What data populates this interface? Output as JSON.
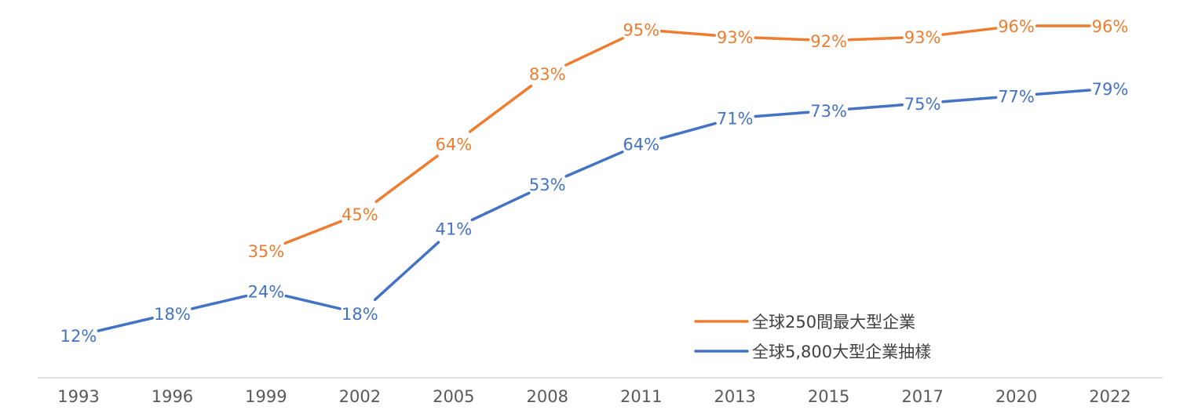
{
  "chart_data": {
    "type": "line",
    "title": "",
    "xlabel": "",
    "ylabel": "",
    "categories": [
      "1993",
      "1996",
      "1999",
      "2002",
      "2005",
      "2008",
      "2011",
      "2013",
      "2015",
      "2017",
      "2020",
      "2022"
    ],
    "ylim": [
      0,
      100
    ],
    "grid": false,
    "legend_position": "bottom-right",
    "series": [
      {
        "name": "全球250間最大型企業",
        "color": "#ED7D31",
        "values": [
          null,
          null,
          35,
          45,
          64,
          83,
          95,
          93,
          92,
          93,
          96,
          96
        ],
        "labels": [
          "",
          "",
          "35%",
          "45%",
          "64%",
          "83%",
          "95%",
          "93%",
          "92%",
          "93%",
          "96%",
          "96%"
        ]
      },
      {
        "name": "全球5,800大型企業抽樣",
        "color": "#4472C4",
        "values": [
          12,
          18,
          24,
          18,
          41,
          53,
          64,
          71,
          73,
          75,
          77,
          79
        ],
        "labels": [
          "12%",
          "18%",
          "24%",
          "18%",
          "41%",
          "53%",
          "64%",
          "71%",
          "73%",
          "75%",
          "77%",
          "79%"
        ]
      }
    ]
  }
}
